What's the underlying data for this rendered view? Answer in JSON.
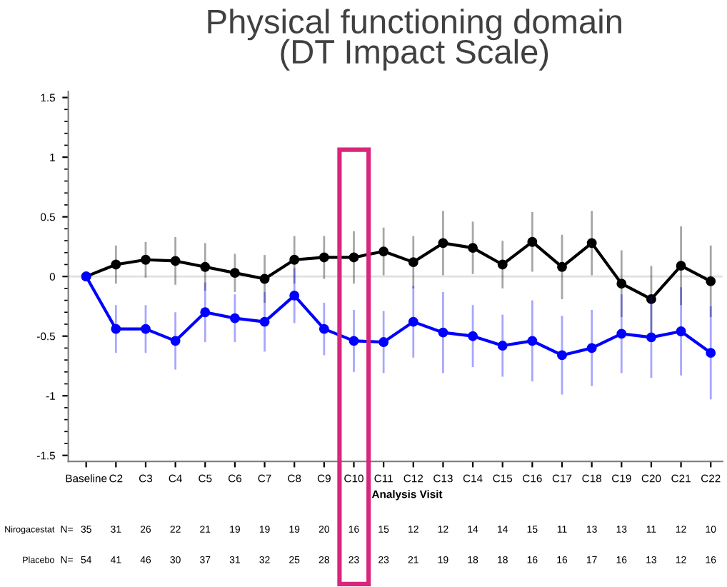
{
  "chart_data": {
    "type": "line",
    "title": "Physical functioning domain\n(DT Impact Scale)",
    "xlabel": "Analysis Visit",
    "categories": [
      "Baseline",
      "C2",
      "C3",
      "C4",
      "C5",
      "C6",
      "C7",
      "C8",
      "C9",
      "C10",
      "C11",
      "C12",
      "C13",
      "C14",
      "C15",
      "C16",
      "C17",
      "C18",
      "C19",
      "C20",
      "C21",
      "C22"
    ],
    "series": [
      {
        "color": "#000000",
        "values": [
          0,
          0.1,
          0.14,
          0.13,
          0.08,
          0.03,
          -0.02,
          0.14,
          0.16,
          0.16,
          0.21,
          0.12,
          0.28,
          0.24,
          0.1,
          0.29,
          0.08,
          0.28,
          -0.06,
          -0.19,
          0.09,
          -0.04
        ],
        "errors": [
          null,
          0.16,
          0.15,
          0.2,
          0.2,
          0.16,
          0.2,
          0.2,
          0.18,
          0.22,
          0.2,
          0.22,
          0.27,
          0.22,
          0.2,
          0.25,
          0.27,
          0.27,
          0.28,
          0.28,
          0.33,
          0.3
        ]
      },
      {
        "color": "#0000ff",
        "values": [
          0,
          -0.44,
          -0.44,
          -0.54,
          -0.3,
          -0.35,
          -0.38,
          -0.16,
          -0.44,
          -0.54,
          -0.55,
          -0.38,
          -0.47,
          -0.5,
          -0.58,
          -0.54,
          -0.66,
          -0.6,
          -0.48,
          -0.51,
          -0.46,
          -0.64
        ],
        "errors": [
          null,
          0.2,
          0.2,
          0.24,
          0.25,
          0.2,
          0.25,
          0.23,
          0.22,
          0.26,
          0.26,
          0.3,
          0.34,
          0.26,
          0.26,
          0.34,
          0.33,
          0.32,
          0.33,
          0.34,
          0.37,
          0.39
        ]
      }
    ],
    "ylim": [
      -1.55,
      1.55
    ],
    "yticks": [
      -1.5,
      -1,
      -0.5,
      0,
      0.5,
      1,
      1.5
    ],
    "ref_lines": [
      {
        "axis": "y",
        "value": 0,
        "color": "#e0e0e0"
      }
    ],
    "marker": "circle",
    "line_style": "solid",
    "grid": false,
    "legend": false,
    "annotations": [
      "Nirogacestat",
      "N=",
      "35",
      "31",
      "26",
      "22",
      "21",
      "19",
      "19",
      "19",
      "20",
      "16",
      "15",
      "12",
      "12",
      "14",
      "14",
      "15",
      "11",
      "13",
      "13",
      "11",
      "12",
      "10",
      "Placebo",
      "N=",
      "54",
      "41",
      "46",
      "30",
      "37",
      "31",
      "32",
      "25",
      "28",
      "23",
      "23",
      "21",
      "19",
      "18",
      "18",
      "16",
      "16",
      "17",
      "16",
      "13",
      "12",
      "16"
    ]
  }
}
